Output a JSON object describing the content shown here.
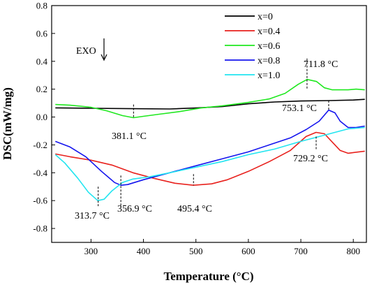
{
  "chart_data": {
    "type": "line",
    "xlabel": "Temperature (°C)",
    "ylabel": "DSC(mW/mg)",
    "xlim": [
      225,
      825
    ],
    "ylim": [
      -0.9,
      0.8
    ],
    "xticks": [
      300,
      400,
      500,
      600,
      700,
      800
    ],
    "yticks": [
      -0.8,
      -0.6,
      -0.4,
      -0.2,
      0.0,
      0.2,
      0.4,
      0.6,
      0.8
    ],
    "xtick_labels": [
      "300",
      "400",
      "500",
      "600",
      "700",
      "800"
    ],
    "ytick_labels": [
      "-0.8",
      "-0.6",
      "-0.4",
      "-0.2",
      "0.0",
      "0.2",
      "0.4",
      "0.6",
      "0.8"
    ],
    "grid": false,
    "legend_placement": "top-right",
    "exo_label": "EXO",
    "series": [
      {
        "name": "x=0",
        "color": "#000000",
        "points": [
          [
            232,
            0.066
          ],
          [
            300,
            0.063
          ],
          [
            380,
            0.06
          ],
          [
            450,
            0.058
          ],
          [
            500,
            0.065
          ],
          [
            550,
            0.075
          ],
          [
            600,
            0.095
          ],
          [
            650,
            0.108
          ],
          [
            700,
            0.115
          ],
          [
            753,
            0.118
          ],
          [
            800,
            0.122
          ],
          [
            822,
            0.127
          ]
        ]
      },
      {
        "name": "x=0.4",
        "color": "#e8211d",
        "points": [
          [
            232,
            -0.265
          ],
          [
            260,
            -0.285
          ],
          [
            300,
            -0.31
          ],
          [
            340,
            -0.345
          ],
          [
            380,
            -0.4
          ],
          [
            420,
            -0.44
          ],
          [
            460,
            -0.475
          ],
          [
            495,
            -0.49
          ],
          [
            530,
            -0.48
          ],
          [
            560,
            -0.45
          ],
          [
            600,
            -0.39
          ],
          [
            640,
            -0.32
          ],
          [
            680,
            -0.24
          ],
          [
            710,
            -0.14
          ],
          [
            729,
            -0.11
          ],
          [
            745,
            -0.12
          ],
          [
            760,
            -0.18
          ],
          [
            775,
            -0.24
          ],
          [
            790,
            -0.26
          ],
          [
            800,
            -0.255
          ],
          [
            822,
            -0.245
          ]
        ]
      },
      {
        "name": "x=0.6",
        "color": "#1fe81f",
        "points": [
          [
            232,
            0.09
          ],
          [
            260,
            0.085
          ],
          [
            300,
            0.07
          ],
          [
            330,
            0.045
          ],
          [
            360,
            0.01
          ],
          [
            381,
            -0.005
          ],
          [
            400,
            0.005
          ],
          [
            430,
            0.02
          ],
          [
            470,
            0.04
          ],
          [
            510,
            0.065
          ],
          [
            550,
            0.08
          ],
          [
            600,
            0.105
          ],
          [
            640,
            0.13
          ],
          [
            670,
            0.17
          ],
          [
            695,
            0.235
          ],
          [
            712,
            0.27
          ],
          [
            730,
            0.255
          ],
          [
            745,
            0.21
          ],
          [
            760,
            0.195
          ],
          [
            790,
            0.195
          ],
          [
            805,
            0.2
          ],
          [
            822,
            0.195
          ]
        ]
      },
      {
        "name": "x=0.8",
        "color": "#1414ee",
        "points": [
          [
            232,
            -0.175
          ],
          [
            260,
            -0.215
          ],
          [
            290,
            -0.285
          ],
          [
            320,
            -0.39
          ],
          [
            345,
            -0.47
          ],
          [
            357,
            -0.49
          ],
          [
            370,
            -0.485
          ],
          [
            400,
            -0.45
          ],
          [
            450,
            -0.4
          ],
          [
            500,
            -0.35
          ],
          [
            550,
            -0.3
          ],
          [
            600,
            -0.25
          ],
          [
            640,
            -0.2
          ],
          [
            680,
            -0.15
          ],
          [
            710,
            -0.09
          ],
          [
            735,
            -0.03
          ],
          [
            753,
            0.05
          ],
          [
            765,
            0.03
          ],
          [
            775,
            -0.03
          ],
          [
            790,
            -0.075
          ],
          [
            805,
            -0.075
          ],
          [
            822,
            -0.065
          ]
        ]
      },
      {
        "name": "x=1.0",
        "color": "#22e5f0",
        "points": [
          [
            232,
            -0.27
          ],
          [
            250,
            -0.33
          ],
          [
            275,
            -0.44
          ],
          [
            295,
            -0.54
          ],
          [
            313,
            -0.6
          ],
          [
            325,
            -0.59
          ],
          [
            340,
            -0.53
          ],
          [
            360,
            -0.47
          ],
          [
            380,
            -0.445
          ],
          [
            410,
            -0.43
          ],
          [
            450,
            -0.4
          ],
          [
            500,
            -0.36
          ],
          [
            550,
            -0.32
          ],
          [
            600,
            -0.27
          ],
          [
            650,
            -0.23
          ],
          [
            700,
            -0.175
          ],
          [
            750,
            -0.125
          ],
          [
            790,
            -0.085
          ],
          [
            822,
            -0.075
          ]
        ]
      }
    ],
    "annotations": [
      {
        "text": "381.1 °C",
        "x": 381.1,
        "y_top": 0.09,
        "y_bottom": -0.005
      },
      {
        "text": "711.8 °C",
        "x": 711.8,
        "y_top": 0.42,
        "y_bottom": 0.2
      },
      {
        "text": "753.1 °C",
        "x": 753.1,
        "y_top": 0.118,
        "y_bottom": 0.05
      },
      {
        "text": "729.2 °C",
        "x": 729.2,
        "y_top": -0.14,
        "y_bottom": -0.24
      },
      {
        "text": "495.4 °C",
        "x": 495.4,
        "y_top": -0.41,
        "y_bottom": -0.49
      },
      {
        "text": "356.9 °C",
        "x": 356.9,
        "y_top": -0.42,
        "y_bottom": -0.64
      },
      {
        "text": "313.7 °C",
        "x": 313.7,
        "y_top": -0.5,
        "y_bottom": -0.64
      }
    ]
  }
}
